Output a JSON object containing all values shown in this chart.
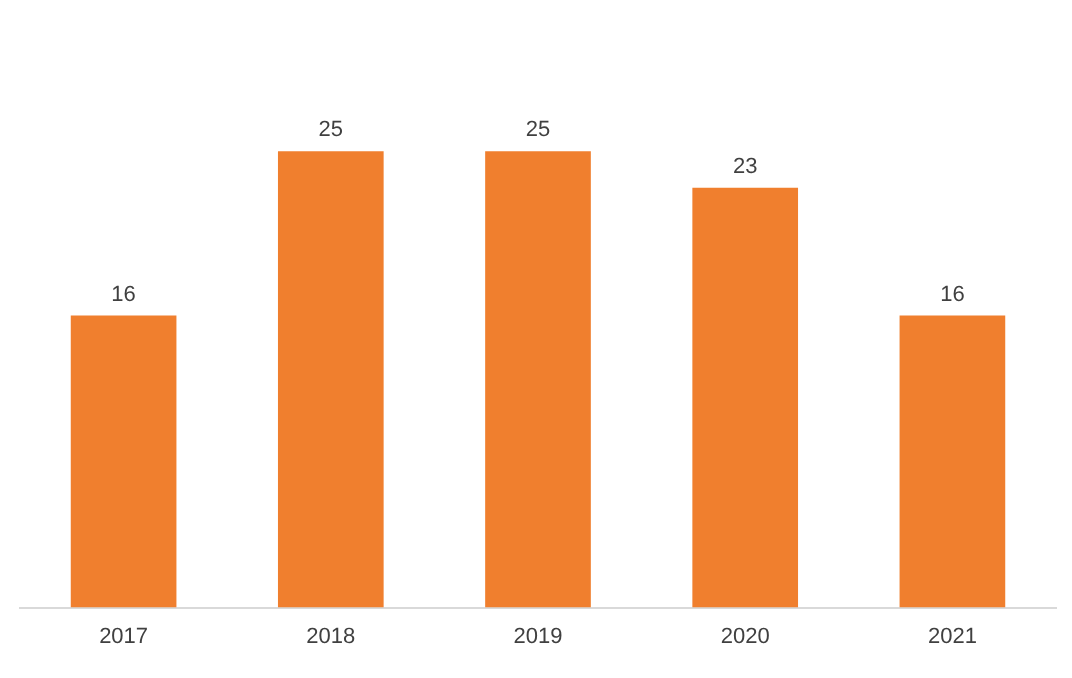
{
  "chart_data": {
    "type": "bar",
    "categories": [
      "2017",
      "2018",
      "2019",
      "2020",
      "2021"
    ],
    "values": [
      16,
      25,
      25,
      23,
      16
    ],
    "color": "#f07f2e",
    "tick_labels": "x",
    "data_labels": true,
    "grid": false,
    "legend": false
  }
}
